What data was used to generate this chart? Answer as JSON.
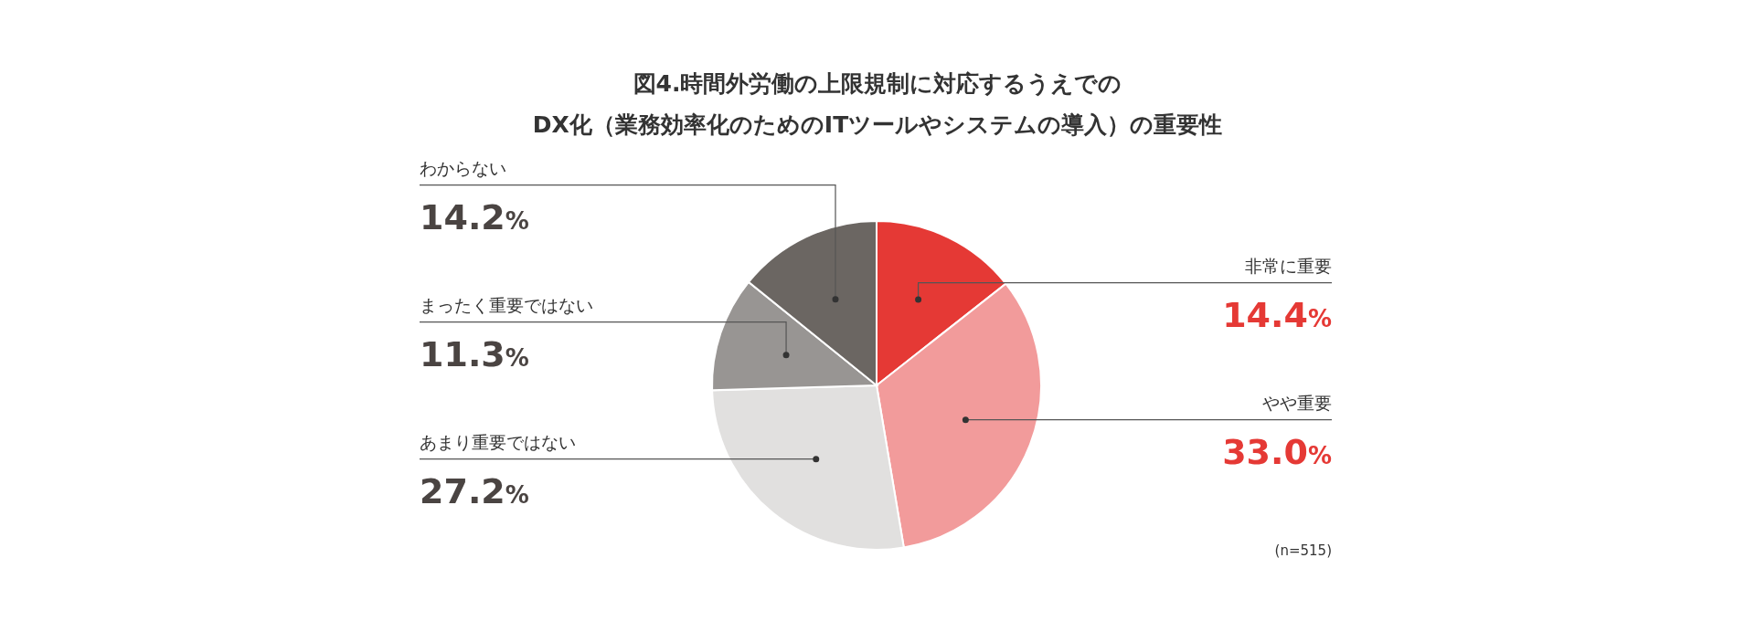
{
  "chart_data": {
    "type": "pie",
    "title": "図4.時間外労働の上限規制に対応するうえでの",
    "subtitle": "DX化（業務効率化のためのITツールやシステムの導入）の重要性",
    "categories": [
      "非常に重要",
      "やや重要",
      "あまり重要ではない",
      "まったく重要ではない",
      "わからない"
    ],
    "values": [
      14.4,
      33.0,
      27.2,
      11.3,
      14.2
    ],
    "value_labels": [
      "14.4%",
      "33.0%",
      "27.2%",
      "11.3%",
      "14.2%"
    ],
    "colors": [
      "#e53935",
      "#f29b9b",
      "#e1e0df",
      "#989593",
      "#6b6662"
    ],
    "annotations": [
      "(n=515)"
    ]
  }
}
